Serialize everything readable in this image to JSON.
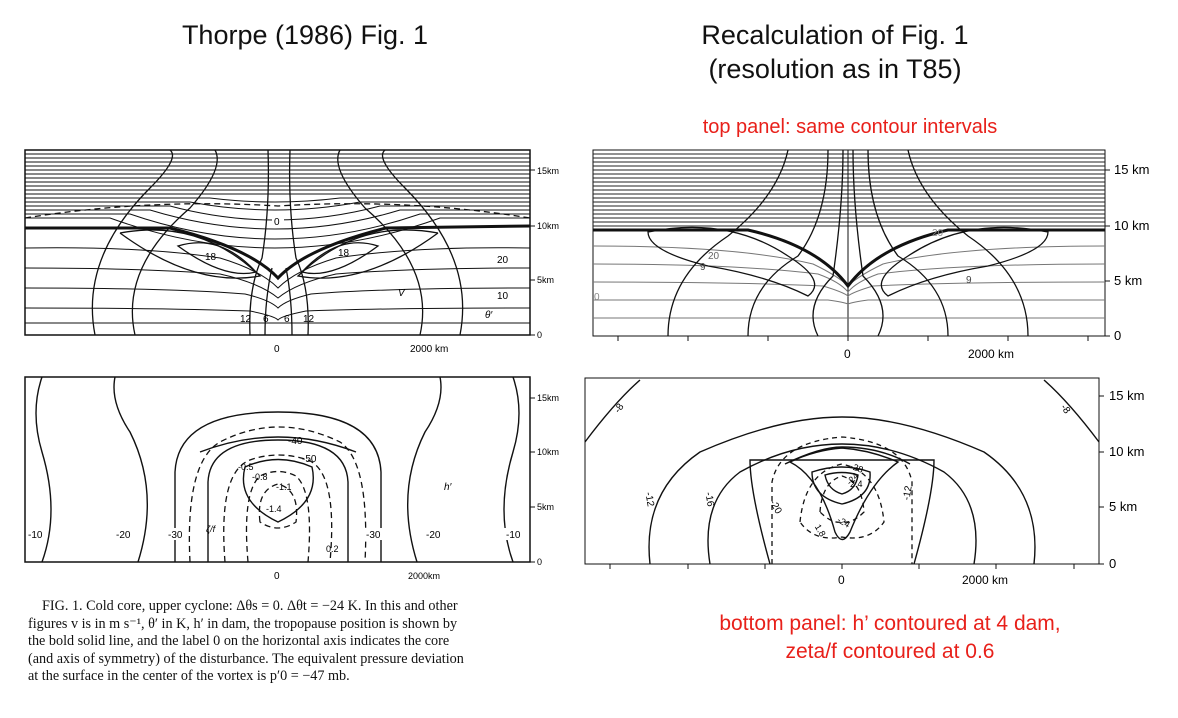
{
  "left_title": "Thorpe (1986) Fig. 1",
  "right_title_line1": "Recalculation of  Fig. 1",
  "right_title_line2": "(resolution as in T85)",
  "top_note": "top panel: same contour intervals",
  "bottom_note_line1": "bottom panel:  h’ contoured at 4 dam,",
  "bottom_note_line2": "zeta/f contoured at 0.6",
  "caption_lines": [
    "FIG. 1. Cold core, upper cyclone: Δθs = 0. Δθt = −24 K. In this and other",
    "figures v is in m s⁻¹, θ′ in K, h′ in dam, the tropopause position is shown by",
    "the bold solid line, and the label 0 on the horizontal axis indicates the core",
    "(and axis of symmetry) of the disturbance. The equivalent pressure deviation",
    "at the surface in the center of the vortex is p′0 = −47 mb."
  ],
  "left_top": {
    "y_ticks": [
      "15km",
      "10km",
      "5km",
      "0"
    ],
    "x_ticks": [
      "0",
      "2000 km"
    ],
    "labels": [
      "0",
      "18",
      "18",
      "20",
      "10",
      "V",
      "θ′",
      "12",
      "6",
      "6",
      "12"
    ]
  },
  "left_bottom": {
    "y_ticks": [
      "15km",
      "10km",
      "5km",
      "0"
    ],
    "x_ticks": [
      "0",
      "2000km"
    ],
    "labels": [
      "-40",
      "-50",
      "-0.5",
      "-0.8",
      "-1.1",
      "-1.4",
      "0.2",
      "h′",
      "-10",
      "-20",
      "-30",
      "-30",
      "-20",
      "-10",
      "ζ/f"
    ]
  },
  "right_top": {
    "y_ticks": [
      "15 km",
      "10 km",
      "5 km",
      "0"
    ],
    "x_ticks": [
      "0",
      "2000 km"
    ],
    "labels": [
      "20",
      "9",
      "9",
      "0",
      "20"
    ]
  },
  "right_bottom": {
    "y_ticks": [
      "15 km",
      "10 km",
      "5 km",
      "0"
    ],
    "x_ticks": [
      "0",
      "2000 km"
    ],
    "labels": [
      "-8",
      "-8",
      "-12",
      "-16",
      "-20",
      "-12",
      "-28",
      "-24",
      "-24",
      "1.8",
      "2.4"
    ]
  }
}
